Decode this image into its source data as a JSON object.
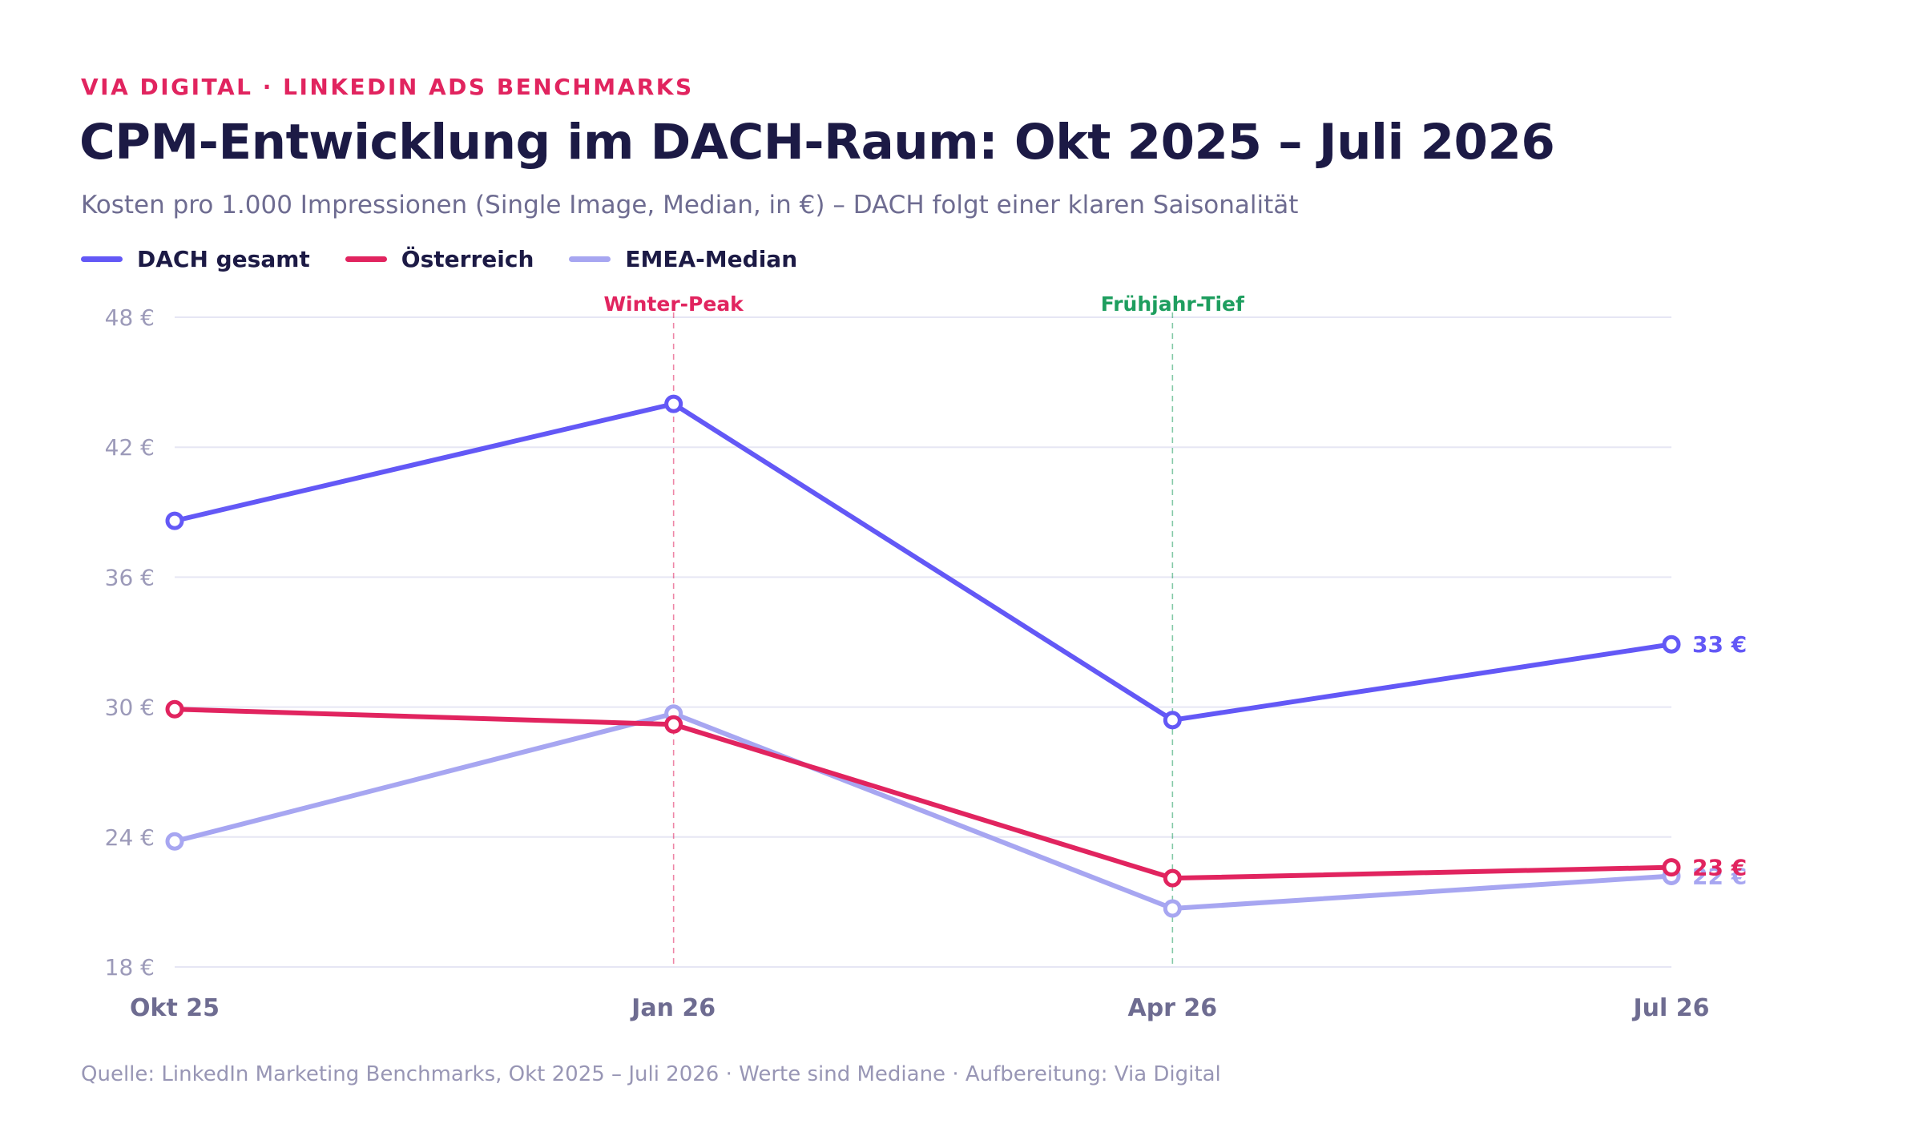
{
  "header": {
    "eyebrow": "VIA DIGITAL · LINKEDIN ADS BENCHMARKS",
    "title": "CPM-Entwicklung im DACH-Raum: Okt 2025 – Juli 2026",
    "subtitle": "Kosten pro 1.000 Impressionen (Single Image, Median, in €) – DACH folgt einer klaren Saisonalität"
  },
  "legend": [
    {
      "label": "DACH gesamt",
      "color": "#6358f6"
    },
    {
      "label": "Österreich",
      "color": "#e1245f"
    },
    {
      "label": "EMEA-Median",
      "color": "#a7a6f1"
    }
  ],
  "footer": {
    "source": "Quelle: LinkedIn Marketing Benchmarks, Okt 2025 – Juli 2026 · Werte sind Mediane · Aufbereitung: Via Digital"
  },
  "chart_data": {
    "type": "line",
    "categories": [
      "Okt 25",
      "Jan 26",
      "Apr 26",
      "Jul 26"
    ],
    "y_ticks": [
      18,
      24,
      30,
      36,
      42,
      48
    ],
    "y_tick_suffix": " €",
    "ylim": [
      18,
      48
    ],
    "grid": true,
    "legend_position": "top-left",
    "series": [
      {
        "name": "DACH gesamt",
        "color": "#6358f6",
        "values": [
          38.6,
          44.0,
          29.4,
          32.9
        ],
        "end_label": "33 €"
      },
      {
        "name": "Österreich",
        "color": "#e1245f",
        "values": [
          29.9,
          29.2,
          22.1,
          22.6
        ],
        "end_label": "23 €"
      },
      {
        "name": "EMEA-Median",
        "color": "#a7a6f1",
        "values": [
          23.8,
          29.7,
          20.7,
          22.2
        ],
        "end_label": "22 €"
      }
    ],
    "annotations": [
      {
        "label": "Winter-Peak",
        "category_index": 1,
        "color": "#e1245f"
      },
      {
        "label": "Frühjahr-Tief",
        "category_index": 2,
        "color": "#1e9e5f"
      }
    ]
  }
}
